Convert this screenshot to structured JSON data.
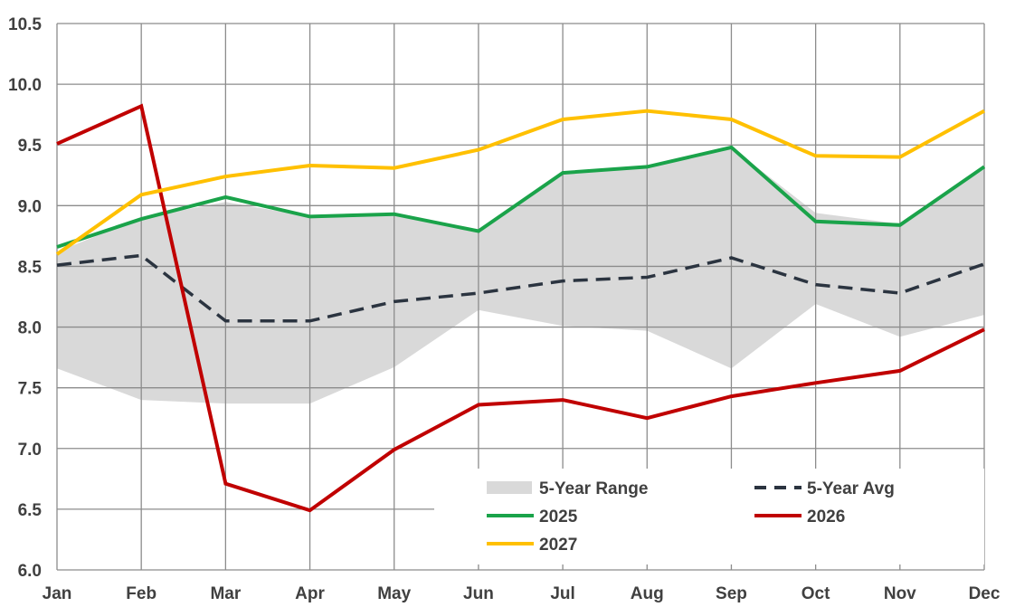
{
  "chart_data": {
    "type": "line",
    "title": "",
    "xlabel": "",
    "ylabel": "",
    "categories": [
      "Jan",
      "Feb",
      "Mar",
      "Apr",
      "May",
      "Jun",
      "Jul",
      "Aug",
      "Sep",
      "Oct",
      "Nov",
      "Dec"
    ],
    "ylim": [
      6.0,
      10.5
    ],
    "yticks": [
      "6.0",
      "6.5",
      "7.0",
      "7.5",
      "8.0",
      "8.5",
      "9.0",
      "9.5",
      "10.0",
      "10.5"
    ],
    "grid": true,
    "legend_position": "bottom-right",
    "range": {
      "name": "5-Year Range",
      "color": "#d9d9d9",
      "low": [
        7.66,
        7.4,
        7.37,
        7.37,
        7.67,
        8.14,
        8.01,
        7.97,
        7.66,
        8.19,
        7.92,
        8.1
      ],
      "high": [
        8.62,
        8.9,
        9.03,
        8.91,
        8.92,
        8.79,
        9.26,
        9.32,
        9.48,
        8.94,
        8.85,
        9.3
      ]
    },
    "series": [
      {
        "name": "5-Year Avg",
        "color": "#2b3440",
        "dashed": true,
        "values": [
          8.51,
          8.59,
          8.05,
          8.05,
          8.21,
          8.28,
          8.38,
          8.41,
          8.57,
          8.35,
          8.28,
          8.52
        ]
      },
      {
        "name": "2025",
        "color": "#1aa34a",
        "dashed": false,
        "values": [
          8.66,
          8.89,
          9.07,
          8.91,
          8.93,
          8.79,
          9.27,
          9.32,
          9.48,
          8.87,
          8.84,
          9.32
        ]
      },
      {
        "name": "2026",
        "color": "#c00000",
        "dashed": false,
        "values": [
          9.51,
          9.82,
          6.71,
          6.49,
          6.99,
          7.36,
          7.4,
          7.25,
          7.43,
          7.54,
          7.64,
          7.98
        ]
      },
      {
        "name": "2027",
        "color": "#ffc000",
        "dashed": false,
        "values": [
          8.6,
          9.09,
          9.24,
          9.33,
          9.31,
          9.46,
          9.71,
          9.78,
          9.71,
          9.41,
          9.4,
          9.78
        ]
      }
    ]
  }
}
